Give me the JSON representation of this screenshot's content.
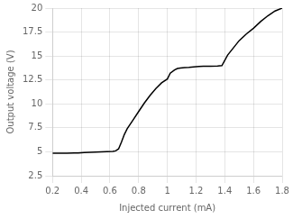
{
  "chart_data": {
    "type": "line",
    "x": [
      0.2,
      0.3,
      0.35,
      0.38,
      0.42,
      0.5,
      0.58,
      0.62,
      0.64,
      0.66,
      0.68,
      0.7,
      0.72,
      0.76,
      0.8,
      0.84,
      0.88,
      0.92,
      0.96,
      1.0,
      1.02,
      1.05,
      1.07,
      1.09,
      1.12,
      1.15,
      1.2,
      1.22,
      1.25,
      1.28,
      1.3,
      1.35,
      1.38,
      1.42,
      1.5,
      1.55,
      1.6,
      1.65,
      1.7,
      1.75,
      1.8
    ],
    "values": [
      4.85,
      4.85,
      4.87,
      4.88,
      4.92,
      4.97,
      5.02,
      5.05,
      5.1,
      5.3,
      6.0,
      6.8,
      7.4,
      8.3,
      9.2,
      10.1,
      10.9,
      11.6,
      12.2,
      12.6,
      13.2,
      13.55,
      13.7,
      13.75,
      13.8,
      13.82,
      13.88,
      13.9,
      13.92,
      13.92,
      13.92,
      13.95,
      14.0,
      15.1,
      16.6,
      17.3,
      17.9,
      18.6,
      19.2,
      19.7,
      20.0
    ],
    "color": "#000000",
    "xlabel": "Injected current (mA)",
    "ylabel": "Output voltage (V)",
    "xlim": [
      0.2,
      1.8
    ],
    "ylim": [
      2.5,
      20.0
    ],
    "xticks": [
      0.2,
      0.4,
      0.6,
      0.8,
      1,
      1.2,
      1.4,
      1.6,
      1.8
    ],
    "yticks": [
      2.5,
      5,
      7.5,
      10,
      12.5,
      15,
      17.5,
      20
    ],
    "grid": true
  }
}
